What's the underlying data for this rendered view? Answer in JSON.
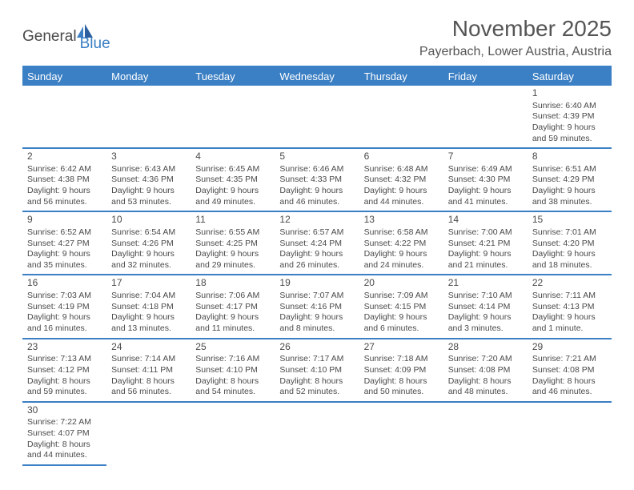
{
  "logo": {
    "general": "General",
    "blue": "Blue"
  },
  "header": {
    "month_title": "November 2025",
    "location": "Payerbach, Lower Austria, Austria"
  },
  "colors": {
    "header_bg": "#3b7fc4",
    "header_text": "#ffffff",
    "row_underline": "#3b7fc4",
    "cell_divider": "#b8b8b8",
    "text": "#4a4a4a",
    "page_bg": "#ffffff"
  },
  "weekdays": [
    "Sunday",
    "Monday",
    "Tuesday",
    "Wednesday",
    "Thursday",
    "Friday",
    "Saturday"
  ],
  "weeks": [
    [
      null,
      null,
      null,
      null,
      null,
      null,
      {
        "n": "1",
        "sunrise": "Sunrise: 6:40 AM",
        "sunset": "Sunset: 4:39 PM",
        "day1": "Daylight: 9 hours",
        "day2": "and 59 minutes."
      }
    ],
    [
      {
        "n": "2",
        "sunrise": "Sunrise: 6:42 AM",
        "sunset": "Sunset: 4:38 PM",
        "day1": "Daylight: 9 hours",
        "day2": "and 56 minutes."
      },
      {
        "n": "3",
        "sunrise": "Sunrise: 6:43 AM",
        "sunset": "Sunset: 4:36 PM",
        "day1": "Daylight: 9 hours",
        "day2": "and 53 minutes."
      },
      {
        "n": "4",
        "sunrise": "Sunrise: 6:45 AM",
        "sunset": "Sunset: 4:35 PM",
        "day1": "Daylight: 9 hours",
        "day2": "and 49 minutes."
      },
      {
        "n": "5",
        "sunrise": "Sunrise: 6:46 AM",
        "sunset": "Sunset: 4:33 PM",
        "day1": "Daylight: 9 hours",
        "day2": "and 46 minutes."
      },
      {
        "n": "6",
        "sunrise": "Sunrise: 6:48 AM",
        "sunset": "Sunset: 4:32 PM",
        "day1": "Daylight: 9 hours",
        "day2": "and 44 minutes."
      },
      {
        "n": "7",
        "sunrise": "Sunrise: 6:49 AM",
        "sunset": "Sunset: 4:30 PM",
        "day1": "Daylight: 9 hours",
        "day2": "and 41 minutes."
      },
      {
        "n": "8",
        "sunrise": "Sunrise: 6:51 AM",
        "sunset": "Sunset: 4:29 PM",
        "day1": "Daylight: 9 hours",
        "day2": "and 38 minutes."
      }
    ],
    [
      {
        "n": "9",
        "sunrise": "Sunrise: 6:52 AM",
        "sunset": "Sunset: 4:27 PM",
        "day1": "Daylight: 9 hours",
        "day2": "and 35 minutes."
      },
      {
        "n": "10",
        "sunrise": "Sunrise: 6:54 AM",
        "sunset": "Sunset: 4:26 PM",
        "day1": "Daylight: 9 hours",
        "day2": "and 32 minutes."
      },
      {
        "n": "11",
        "sunrise": "Sunrise: 6:55 AM",
        "sunset": "Sunset: 4:25 PM",
        "day1": "Daylight: 9 hours",
        "day2": "and 29 minutes."
      },
      {
        "n": "12",
        "sunrise": "Sunrise: 6:57 AM",
        "sunset": "Sunset: 4:24 PM",
        "day1": "Daylight: 9 hours",
        "day2": "and 26 minutes."
      },
      {
        "n": "13",
        "sunrise": "Sunrise: 6:58 AM",
        "sunset": "Sunset: 4:22 PM",
        "day1": "Daylight: 9 hours",
        "day2": "and 24 minutes."
      },
      {
        "n": "14",
        "sunrise": "Sunrise: 7:00 AM",
        "sunset": "Sunset: 4:21 PM",
        "day1": "Daylight: 9 hours",
        "day2": "and 21 minutes."
      },
      {
        "n": "15",
        "sunrise": "Sunrise: 7:01 AM",
        "sunset": "Sunset: 4:20 PM",
        "day1": "Daylight: 9 hours",
        "day2": "and 18 minutes."
      }
    ],
    [
      {
        "n": "16",
        "sunrise": "Sunrise: 7:03 AM",
        "sunset": "Sunset: 4:19 PM",
        "day1": "Daylight: 9 hours",
        "day2": "and 16 minutes."
      },
      {
        "n": "17",
        "sunrise": "Sunrise: 7:04 AM",
        "sunset": "Sunset: 4:18 PM",
        "day1": "Daylight: 9 hours",
        "day2": "and 13 minutes."
      },
      {
        "n": "18",
        "sunrise": "Sunrise: 7:06 AM",
        "sunset": "Sunset: 4:17 PM",
        "day1": "Daylight: 9 hours",
        "day2": "and 11 minutes."
      },
      {
        "n": "19",
        "sunrise": "Sunrise: 7:07 AM",
        "sunset": "Sunset: 4:16 PM",
        "day1": "Daylight: 9 hours",
        "day2": "and 8 minutes."
      },
      {
        "n": "20",
        "sunrise": "Sunrise: 7:09 AM",
        "sunset": "Sunset: 4:15 PM",
        "day1": "Daylight: 9 hours",
        "day2": "and 6 minutes."
      },
      {
        "n": "21",
        "sunrise": "Sunrise: 7:10 AM",
        "sunset": "Sunset: 4:14 PM",
        "day1": "Daylight: 9 hours",
        "day2": "and 3 minutes."
      },
      {
        "n": "22",
        "sunrise": "Sunrise: 7:11 AM",
        "sunset": "Sunset: 4:13 PM",
        "day1": "Daylight: 9 hours",
        "day2": "and 1 minute."
      }
    ],
    [
      {
        "n": "23",
        "sunrise": "Sunrise: 7:13 AM",
        "sunset": "Sunset: 4:12 PM",
        "day1": "Daylight: 8 hours",
        "day2": "and 59 minutes."
      },
      {
        "n": "24",
        "sunrise": "Sunrise: 7:14 AM",
        "sunset": "Sunset: 4:11 PM",
        "day1": "Daylight: 8 hours",
        "day2": "and 56 minutes."
      },
      {
        "n": "25",
        "sunrise": "Sunrise: 7:16 AM",
        "sunset": "Sunset: 4:10 PM",
        "day1": "Daylight: 8 hours",
        "day2": "and 54 minutes."
      },
      {
        "n": "26",
        "sunrise": "Sunrise: 7:17 AM",
        "sunset": "Sunset: 4:10 PM",
        "day1": "Daylight: 8 hours",
        "day2": "and 52 minutes."
      },
      {
        "n": "27",
        "sunrise": "Sunrise: 7:18 AM",
        "sunset": "Sunset: 4:09 PM",
        "day1": "Daylight: 8 hours",
        "day2": "and 50 minutes."
      },
      {
        "n": "28",
        "sunrise": "Sunrise: 7:20 AM",
        "sunset": "Sunset: 4:08 PM",
        "day1": "Daylight: 8 hours",
        "day2": "and 48 minutes."
      },
      {
        "n": "29",
        "sunrise": "Sunrise: 7:21 AM",
        "sunset": "Sunset: 4:08 PM",
        "day1": "Daylight: 8 hours",
        "day2": "and 46 minutes."
      }
    ],
    [
      {
        "n": "30",
        "sunrise": "Sunrise: 7:22 AM",
        "sunset": "Sunset: 4:07 PM",
        "day1": "Daylight: 8 hours",
        "day2": "and 44 minutes."
      },
      null,
      null,
      null,
      null,
      null,
      null
    ]
  ]
}
